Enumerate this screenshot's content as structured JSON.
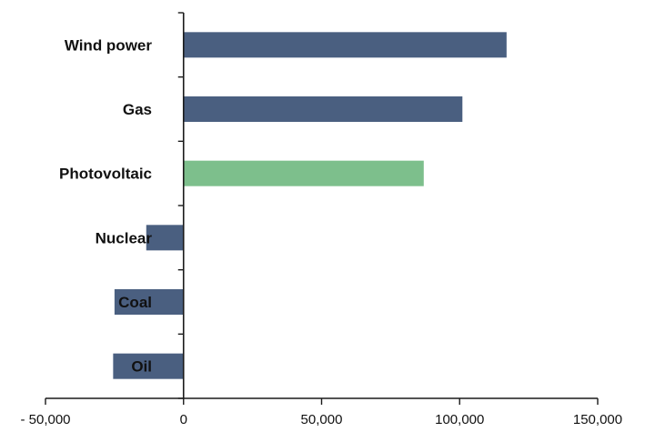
{
  "chart_data": {
    "type": "bar",
    "orientation": "horizontal",
    "title": "",
    "xlabel": "",
    "ylabel": "",
    "categories": [
      "Wind power",
      "Gas",
      "Photovoltaic",
      "Nuclear",
      "Coal",
      "Oil"
    ],
    "values": [
      117000,
      101000,
      87000,
      -13500,
      -25000,
      -25500
    ],
    "highlight_category": "Photovoltaic",
    "colors": {
      "default": "#4a5f80",
      "highlight": "#7dbf8c",
      "axis": "#1a1a1a"
    },
    "xlim": [
      -50000,
      150000
    ],
    "xticks": [
      -50000,
      0,
      50000,
      100000,
      150000
    ],
    "xtick_labels": [
      "- 50,000",
      "0",
      "50,000",
      "100,000",
      "150,000"
    ],
    "grid": false,
    "legend": "none"
  }
}
